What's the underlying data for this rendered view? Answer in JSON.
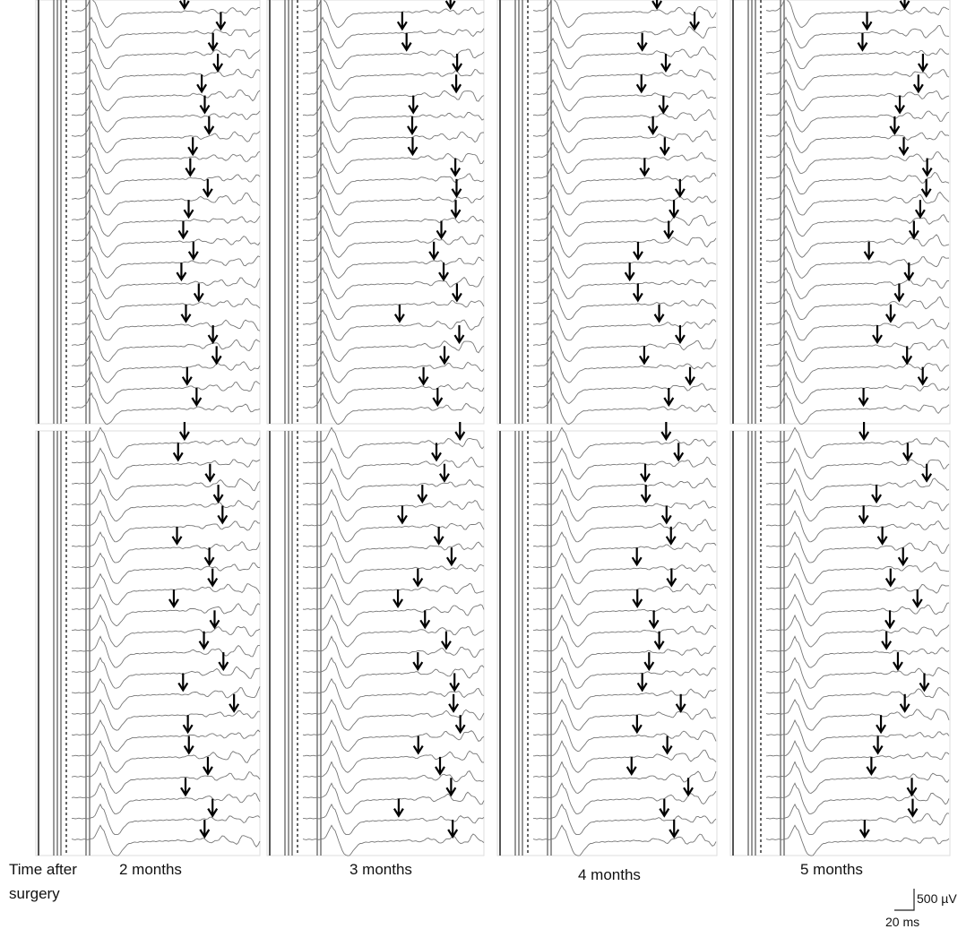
{
  "caption": {
    "time_label": [
      "Time after",
      "surgery"
    ]
  },
  "columns": [
    "2 months",
    "3 months",
    "4 months",
    "5 months"
  ],
  "scale_bar": {
    "voltage": "500 µV",
    "time": "20 ms"
  }
}
